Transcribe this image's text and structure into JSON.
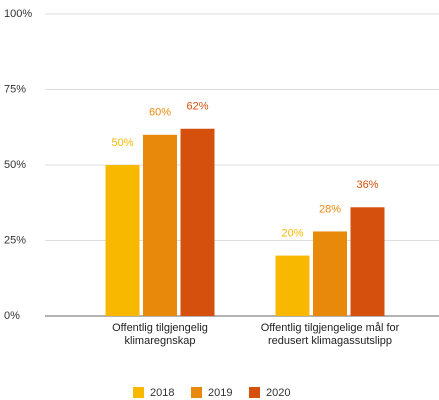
{
  "chart_data": {
    "type": "bar",
    "categories": [
      "Offentlig tilgjengelig klimaregnskap",
      "Offentlig tilgjengelige mål for redusert klimagassutslipp"
    ],
    "series": [
      {
        "name": "2018",
        "color": "#f9b800",
        "values": [
          50,
          20
        ],
        "value_labels": [
          "50%",
          "20%"
        ]
      },
      {
        "name": "2019",
        "color": "#e8890c",
        "values": [
          60,
          28
        ],
        "value_labels": [
          "60%",
          "28%"
        ]
      },
      {
        "name": "2020",
        "color": "#d4500c",
        "values": [
          62,
          36
        ],
        "value_labels": [
          "62%",
          "36%"
        ]
      }
    ],
    "ylim": [
      0,
      100
    ],
    "yticks": [
      {
        "value": 0,
        "label": "0%"
      },
      {
        "value": 25,
        "label": "25%"
      },
      {
        "value": 50,
        "label": "50%"
      },
      {
        "value": 75,
        "label": "75%"
      },
      {
        "value": 100,
        "label": "100%"
      }
    ],
    "grid": true,
    "legend": "bottom"
  }
}
